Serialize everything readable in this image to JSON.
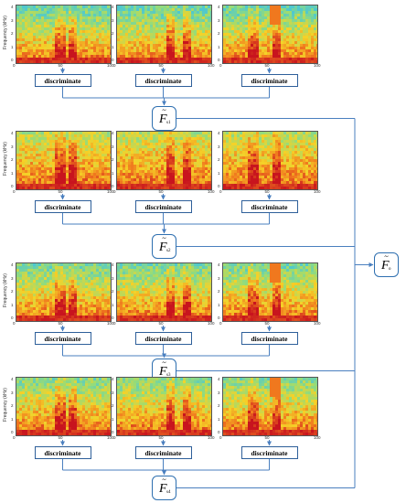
{
  "discriminate_label": "discriminate",
  "ylabel": "Frequency (kHz)",
  "y_ticks": [
    "4",
    "3",
    "2",
    "1",
    "0"
  ],
  "x_ticks": [
    "0",
    "50",
    "100"
  ],
  "stages": [
    {
      "node": {
        "symbol": "F",
        "sub": "s1"
      }
    },
    {
      "node": {
        "symbol": "F",
        "sub": "s2"
      }
    },
    {
      "node": {
        "symbol": "F",
        "sub": "s3"
      }
    },
    {
      "node": {
        "symbol": "F",
        "sub": "s4"
      }
    }
  ],
  "output_node": {
    "symbol": "F",
    "sub": "o"
  },
  "colors": {
    "arrow": "#4a7fbf",
    "box_border": "#2e5f9a",
    "spec_hot": "#c8102e",
    "spec_warm": "#f5c518",
    "spec_cool": "#4ec8d0"
  }
}
